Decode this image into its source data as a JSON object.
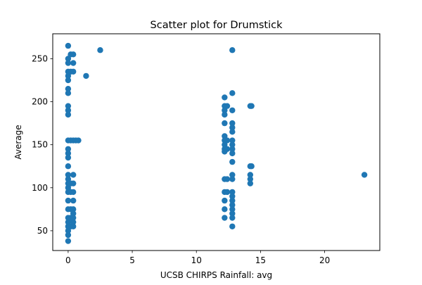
{
  "chart_data": {
    "type": "scatter",
    "title": "Scatter plot for Drumstick",
    "xlabel": "UCSB CHIRPS Rainfall: avg",
    "ylabel": "Average",
    "xlim": [
      -1.2,
      24.3
    ],
    "ylim": [
      27,
      279
    ],
    "xticks": [
      0,
      5,
      10,
      15,
      20
    ],
    "yticks": [
      50,
      100,
      150,
      200,
      250
    ],
    "grid": false,
    "marker_color": "#1f77b4",
    "points": [
      {
        "x": 0,
        "y": 265
      },
      {
        "x": 0,
        "y": 250
      },
      {
        "x": 0,
        "y": 245
      },
      {
        "x": 0,
        "y": 235
      },
      {
        "x": 0,
        "y": 230
      },
      {
        "x": 0,
        "y": 225
      },
      {
        "x": 0,
        "y": 215
      },
      {
        "x": 0,
        "y": 210
      },
      {
        "x": 0,
        "y": 195
      },
      {
        "x": 0,
        "y": 190
      },
      {
        "x": 0,
        "y": 185
      },
      {
        "x": 0,
        "y": 155
      },
      {
        "x": 0,
        "y": 145
      },
      {
        "x": 0,
        "y": 140
      },
      {
        "x": 0,
        "y": 135
      },
      {
        "x": 0,
        "y": 125
      },
      {
        "x": 0,
        "y": 115
      },
      {
        "x": 0,
        "y": 110
      },
      {
        "x": 0,
        "y": 105
      },
      {
        "x": 0,
        "y": 100
      },
      {
        "x": 0,
        "y": 95
      },
      {
        "x": 0,
        "y": 85
      },
      {
        "x": 0,
        "y": 75
      },
      {
        "x": 0,
        "y": 65
      },
      {
        "x": 0,
        "y": 60
      },
      {
        "x": 0,
        "y": 55
      },
      {
        "x": 0,
        "y": 50
      },
      {
        "x": 0,
        "y": 45
      },
      {
        "x": 0,
        "y": 38
      },
      {
        "x": 0.2,
        "y": 255
      },
      {
        "x": 0.2,
        "y": 235
      },
      {
        "x": 0.2,
        "y": 155
      },
      {
        "x": 0.2,
        "y": 105
      },
      {
        "x": 0.2,
        "y": 95
      },
      {
        "x": 0.2,
        "y": 75
      },
      {
        "x": 0.2,
        "y": 65
      },
      {
        "x": 0.2,
        "y": 55
      },
      {
        "x": 0.4,
        "y": 255
      },
      {
        "x": 0.4,
        "y": 245
      },
      {
        "x": 0.4,
        "y": 235
      },
      {
        "x": 0.4,
        "y": 155
      },
      {
        "x": 0.4,
        "y": 115
      },
      {
        "x": 0.4,
        "y": 105
      },
      {
        "x": 0.4,
        "y": 95
      },
      {
        "x": 0.4,
        "y": 85
      },
      {
        "x": 0.4,
        "y": 75
      },
      {
        "x": 0.4,
        "y": 70
      },
      {
        "x": 0.4,
        "y": 65
      },
      {
        "x": 0.4,
        "y": 60
      },
      {
        "x": 0.4,
        "y": 55
      },
      {
        "x": 0.6,
        "y": 155
      },
      {
        "x": 0.8,
        "y": 155
      },
      {
        "x": 1.4,
        "y": 230
      },
      {
        "x": 2.5,
        "y": 260
      },
      {
        "x": 12.2,
        "y": 205
      },
      {
        "x": 12.2,
        "y": 195
      },
      {
        "x": 12.2,
        "y": 190
      },
      {
        "x": 12.2,
        "y": 185
      },
      {
        "x": 12.2,
        "y": 175
      },
      {
        "x": 12.2,
        "y": 160
      },
      {
        "x": 12.2,
        "y": 155
      },
      {
        "x": 12.2,
        "y": 150
      },
      {
        "x": 12.2,
        "y": 145
      },
      {
        "x": 12.2,
        "y": 142
      },
      {
        "x": 12.2,
        "y": 110
      },
      {
        "x": 12.2,
        "y": 95
      },
      {
        "x": 12.2,
        "y": 85
      },
      {
        "x": 12.2,
        "y": 75
      },
      {
        "x": 12.2,
        "y": 65
      },
      {
        "x": 12.4,
        "y": 195
      },
      {
        "x": 12.4,
        "y": 155
      },
      {
        "x": 12.4,
        "y": 145
      },
      {
        "x": 12.4,
        "y": 110
      },
      {
        "x": 12.4,
        "y": 95
      },
      {
        "x": 12.8,
        "y": 260
      },
      {
        "x": 12.8,
        "y": 210
      },
      {
        "x": 12.8,
        "y": 190
      },
      {
        "x": 12.8,
        "y": 175
      },
      {
        "x": 12.8,
        "y": 170
      },
      {
        "x": 12.8,
        "y": 165
      },
      {
        "x": 12.8,
        "y": 155
      },
      {
        "x": 12.8,
        "y": 150
      },
      {
        "x": 12.8,
        "y": 145
      },
      {
        "x": 12.8,
        "y": 140
      },
      {
        "x": 12.8,
        "y": 130
      },
      {
        "x": 12.8,
        "y": 115
      },
      {
        "x": 12.8,
        "y": 110
      },
      {
        "x": 12.8,
        "y": 95
      },
      {
        "x": 12.8,
        "y": 90
      },
      {
        "x": 12.8,
        "y": 85
      },
      {
        "x": 12.8,
        "y": 80
      },
      {
        "x": 12.8,
        "y": 75
      },
      {
        "x": 12.8,
        "y": 70
      },
      {
        "x": 12.8,
        "y": 65
      },
      {
        "x": 12.8,
        "y": 55
      },
      {
        "x": 14.2,
        "y": 195
      },
      {
        "x": 14.2,
        "y": 125
      },
      {
        "x": 14.2,
        "y": 115
      },
      {
        "x": 14.2,
        "y": 110
      },
      {
        "x": 14.2,
        "y": 105
      },
      {
        "x": 14.3,
        "y": 195
      },
      {
        "x": 14.3,
        "y": 125
      },
      {
        "x": 23.1,
        "y": 115
      }
    ]
  }
}
